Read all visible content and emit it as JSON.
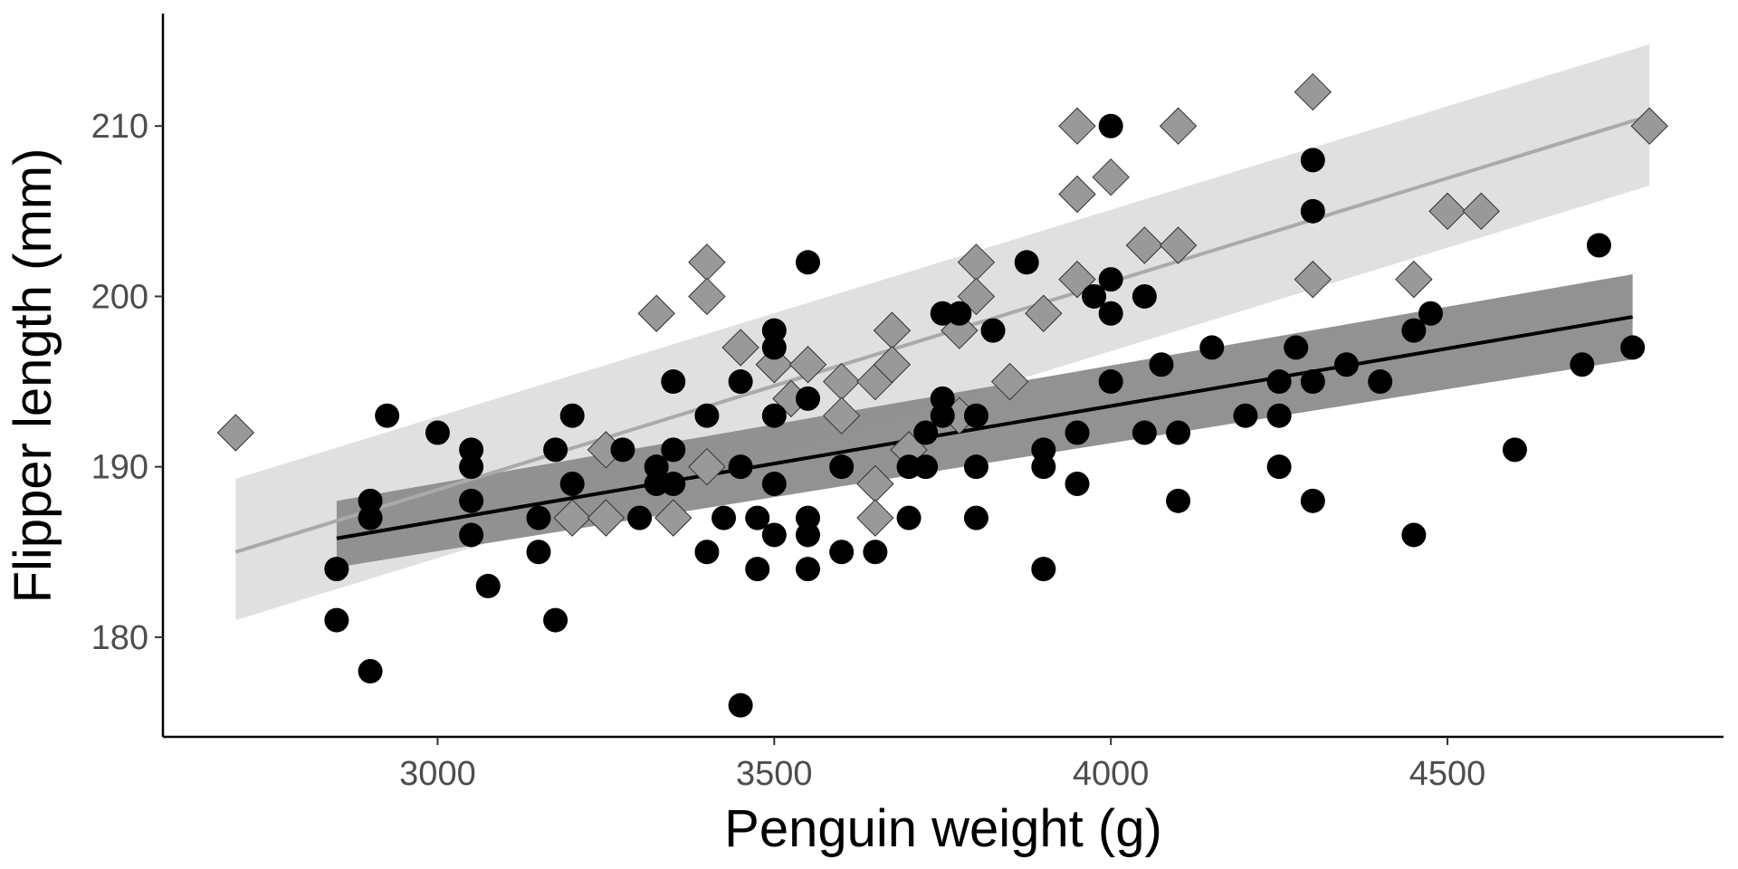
{
  "chart_data": {
    "type": "scatter",
    "title": "",
    "xlabel": "Penguin weight (g)",
    "ylabel": "Flipper length (mm)",
    "xlim": [
      2592,
      4910
    ],
    "ylim": [
      174.15,
      216.6
    ],
    "xticks": [
      3000,
      3500,
      4000,
      4500
    ],
    "yticks": [
      180,
      190,
      200,
      210
    ],
    "xtick_labels": [
      "3000",
      "3500",
      "4000",
      "4500"
    ],
    "ytick_labels": [
      "180",
      "190",
      "200",
      "210"
    ],
    "grid": false,
    "legend": "none",
    "series": [
      {
        "name": "group-circle",
        "marker": "circle",
        "color": "#000000",
        "points": [
          [
            2850,
            181
          ],
          [
            2850,
            184
          ],
          [
            2900,
            178
          ],
          [
            2900,
            188
          ],
          [
            2900,
            187
          ],
          [
            2925,
            193
          ],
          [
            3000,
            192
          ],
          [
            3050,
            191
          ],
          [
            3050,
            190
          ],
          [
            3050,
            188
          ],
          [
            3050,
            186
          ],
          [
            3075,
            183
          ],
          [
            3150,
            187
          ],
          [
            3150,
            185
          ],
          [
            3175,
            191
          ],
          [
            3175,
            181
          ],
          [
            3200,
            193
          ],
          [
            3200,
            189
          ],
          [
            3275,
            191
          ],
          [
            3300,
            187
          ],
          [
            3325,
            190
          ],
          [
            3325,
            189
          ],
          [
            3350,
            195
          ],
          [
            3350,
            191
          ],
          [
            3350,
            189
          ],
          [
            3400,
            193
          ],
          [
            3400,
            185
          ],
          [
            3425,
            187
          ],
          [
            3450,
            195
          ],
          [
            3450,
            190
          ],
          [
            3450,
            176
          ],
          [
            3475,
            187
          ],
          [
            3475,
            184
          ],
          [
            3500,
            198
          ],
          [
            3500,
            197
          ],
          [
            3500,
            193
          ],
          [
            3500,
            189
          ],
          [
            3500,
            186
          ],
          [
            3550,
            202
          ],
          [
            3550,
            194
          ],
          [
            3550,
            187
          ],
          [
            3550,
            186
          ],
          [
            3550,
            184
          ],
          [
            3600,
            190
          ],
          [
            3600,
            185
          ],
          [
            3650,
            185
          ],
          [
            3700,
            190
          ],
          [
            3700,
            187
          ],
          [
            3725,
            192
          ],
          [
            3725,
            190
          ],
          [
            3750,
            199
          ],
          [
            3750,
            194
          ],
          [
            3750,
            193
          ],
          [
            3775,
            199
          ],
          [
            3800,
            193
          ],
          [
            3800,
            190
          ],
          [
            3800,
            187
          ],
          [
            3825,
            198
          ],
          [
            3875,
            202
          ],
          [
            3900,
            191
          ],
          [
            3900,
            190
          ],
          [
            3900,
            184
          ],
          [
            3950,
            192
          ],
          [
            3950,
            189
          ],
          [
            3975,
            200
          ],
          [
            4000,
            210
          ],
          [
            4000,
            201
          ],
          [
            4000,
            199
          ],
          [
            4000,
            195
          ],
          [
            4050,
            200
          ],
          [
            4050,
            192
          ],
          [
            4075,
            196
          ],
          [
            4100,
            192
          ],
          [
            4100,
            188
          ],
          [
            4150,
            197
          ],
          [
            4200,
            193
          ],
          [
            4250,
            195
          ],
          [
            4250,
            193
          ],
          [
            4250,
            190
          ],
          [
            4275,
            197
          ],
          [
            4300,
            208
          ],
          [
            4300,
            205
          ],
          [
            4300,
            195
          ],
          [
            4300,
            188
          ],
          [
            4350,
            196
          ],
          [
            4400,
            195
          ],
          [
            4450,
            198
          ],
          [
            4450,
            186
          ],
          [
            4475,
            199
          ],
          [
            4600,
            191
          ],
          [
            4700,
            196
          ],
          [
            4725,
            203
          ],
          [
            4775,
            197
          ]
        ],
        "fit": {
          "x": [
            2850,
            4775
          ],
          "y": [
            185.8,
            198.8
          ],
          "ci_low": [
            184.1,
            196.3
          ],
          "ci_high": [
            188.0,
            201.3
          ],
          "line_color": "#000000",
          "band_color": "#8c8c8c"
        }
      },
      {
        "name": "group-diamond",
        "marker": "diamond",
        "color": "#999999",
        "points": [
          [
            2700,
            192
          ],
          [
            3200,
            187
          ],
          [
            3250,
            191
          ],
          [
            3250,
            187
          ],
          [
            3325,
            199
          ],
          [
            3350,
            187
          ],
          [
            3400,
            202
          ],
          [
            3400,
            200
          ],
          [
            3400,
            190
          ],
          [
            3450,
            197
          ],
          [
            3500,
            196
          ],
          [
            3525,
            194
          ],
          [
            3550,
            196
          ],
          [
            3600,
            195
          ],
          [
            3600,
            193
          ],
          [
            3650,
            195
          ],
          [
            3650,
            189
          ],
          [
            3650,
            187
          ],
          [
            3675,
            198
          ],
          [
            3675,
            196
          ],
          [
            3700,
            191
          ],
          [
            3775,
            198
          ],
          [
            3775,
            193
          ],
          [
            3800,
            202
          ],
          [
            3800,
            200
          ],
          [
            3850,
            195
          ],
          [
            3900,
            199
          ],
          [
            3950,
            210
          ],
          [
            3950,
            206
          ],
          [
            3950,
            201
          ],
          [
            4000,
            207
          ],
          [
            4050,
            203
          ],
          [
            4100,
            210
          ],
          [
            4100,
            203
          ],
          [
            4300,
            212
          ],
          [
            4300,
            201
          ],
          [
            4450,
            201
          ],
          [
            4500,
            205
          ],
          [
            4550,
            205
          ],
          [
            4800,
            210
          ]
        ],
        "fit": {
          "x": [
            2700,
            4800
          ],
          "y": [
            185.0,
            210.6
          ],
          "ci_low": [
            181.0,
            206.5
          ],
          "ci_high": [
            189.3,
            214.8
          ],
          "line_color": "#aaaaaa",
          "band_color": "#dedede"
        }
      }
    ]
  }
}
